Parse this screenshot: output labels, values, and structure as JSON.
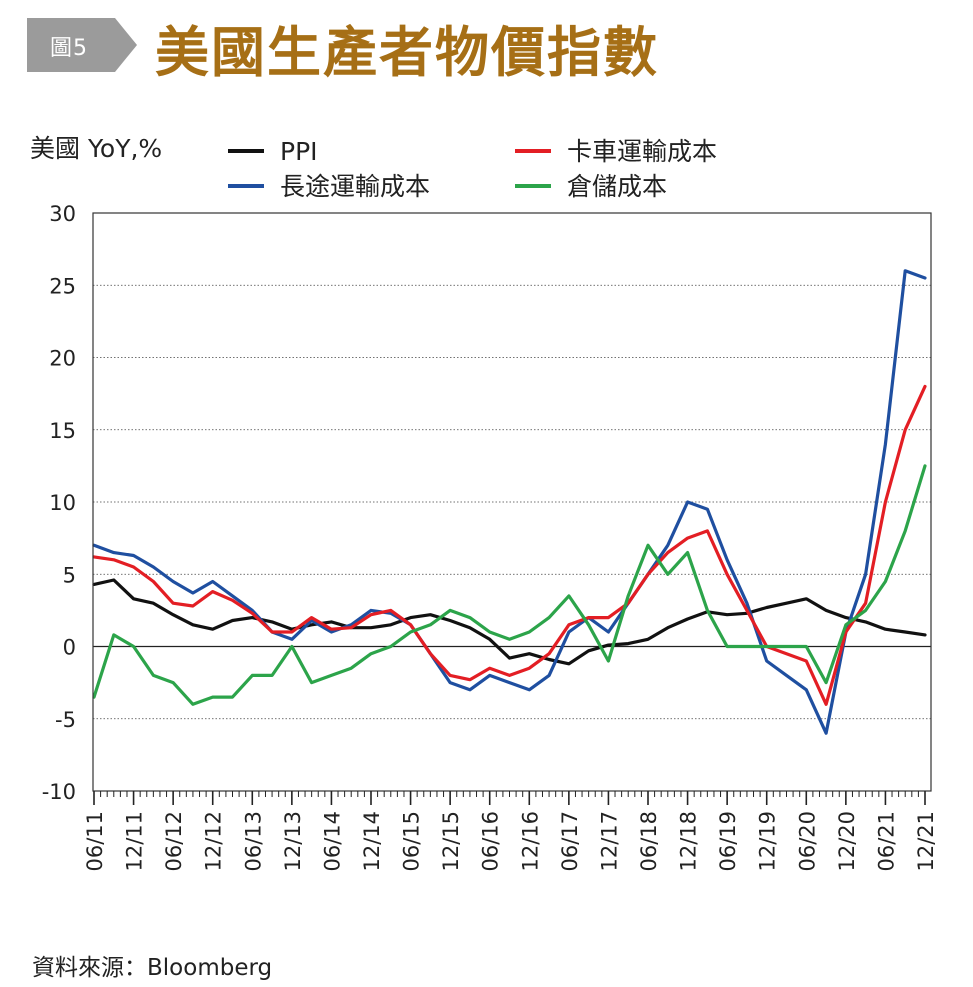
{
  "header": {
    "badge": "圖5",
    "title": "美國生產者物價指數"
  },
  "source": "資料來源：Bloomberg",
  "chart_data": {
    "type": "line",
    "ylabel": "美國 YoY,%",
    "ylim": [
      -10,
      30
    ],
    "y_ticks": [
      "30",
      "25",
      "20",
      "15",
      "10",
      "5",
      "0",
      "-5",
      "-10"
    ],
    "x_tick_labels": [
      "06/11",
      "12/11",
      "06/12",
      "12/12",
      "06/13",
      "12/13",
      "06/14",
      "12/14",
      "06/15",
      "12/15",
      "06/16",
      "12/16",
      "06/17",
      "12/17",
      "06/18",
      "12/18",
      "06/19",
      "12/19",
      "06/20",
      "12/20",
      "06/21",
      "12/21"
    ],
    "x_range_months": [
      0,
      126
    ],
    "grid": "horizontal-dotted",
    "legend_position": "top",
    "series": [
      {
        "name": "PPI",
        "color": "#111111",
        "points": [
          [
            0,
            4.3
          ],
          [
            3,
            4.6
          ],
          [
            6,
            3.3
          ],
          [
            9,
            3.0
          ],
          [
            12,
            2.2
          ],
          [
            15,
            1.5
          ],
          [
            18,
            1.2
          ],
          [
            21,
            1.8
          ],
          [
            24,
            2.0
          ],
          [
            27,
            1.7
          ],
          [
            30,
            1.2
          ],
          [
            33,
            1.5
          ],
          [
            36,
            1.7
          ],
          [
            39,
            1.3
          ],
          [
            42,
            1.3
          ],
          [
            45,
            1.5
          ],
          [
            48,
            2.0
          ],
          [
            51,
            2.2
          ],
          [
            54,
            1.8
          ],
          [
            57,
            1.3
          ],
          [
            60,
            0.5
          ],
          [
            63,
            -0.8
          ],
          [
            66,
            -0.5
          ],
          [
            69,
            -0.9
          ],
          [
            72,
            -1.2
          ],
          [
            75,
            -0.3
          ],
          [
            78,
            0.1
          ],
          [
            81,
            0.2
          ],
          [
            84,
            0.5
          ],
          [
            87,
            1.3
          ],
          [
            90,
            1.9
          ],
          [
            93,
            2.4
          ],
          [
            96,
            2.2
          ],
          [
            99,
            2.3
          ],
          [
            102,
            2.7
          ],
          [
            105,
            3.0
          ],
          [
            108,
            3.3
          ],
          [
            111,
            2.5
          ],
          [
            114,
            2.0
          ],
          [
            117,
            1.7
          ],
          [
            120,
            1.2
          ],
          [
            123,
            1.0
          ],
          [
            126,
            0.8
          ]
        ]
      },
      {
        "name": "長途運輸成本",
        "color": "#1f4fa0",
        "points": [
          [
            0,
            7.0
          ],
          [
            3,
            6.5
          ],
          [
            6,
            6.3
          ],
          [
            9,
            5.5
          ],
          [
            12,
            4.5
          ],
          [
            15,
            3.7
          ],
          [
            18,
            4.5
          ],
          [
            21,
            3.5
          ],
          [
            24,
            2.5
          ],
          [
            27,
            1.0
          ],
          [
            30,
            0.5
          ],
          [
            33,
            1.8
          ],
          [
            36,
            1.0
          ],
          [
            39,
            1.5
          ],
          [
            42,
            2.5
          ],
          [
            45,
            2.3
          ],
          [
            48,
            1.5
          ],
          [
            51,
            -0.5
          ],
          [
            54,
            -2.5
          ],
          [
            57,
            -3.0
          ],
          [
            60,
            -2.0
          ],
          [
            63,
            -2.5
          ],
          [
            66,
            -3.0
          ],
          [
            69,
            -2.0
          ],
          [
            72,
            1.0
          ],
          [
            75,
            2.0
          ],
          [
            78,
            1.0
          ],
          [
            81,
            3.0
          ],
          [
            84,
            5.0
          ],
          [
            87,
            7.0
          ],
          [
            90,
            10.0
          ],
          [
            93,
            9.5
          ],
          [
            96,
            6.0
          ],
          [
            99,
            3.0
          ],
          [
            102,
            -1.0
          ],
          [
            105,
            -2.0
          ],
          [
            108,
            -3.0
          ],
          [
            111,
            -6.0
          ],
          [
            114,
            1.0
          ],
          [
            117,
            5.0
          ],
          [
            120,
            14.0
          ],
          [
            123,
            26.0
          ],
          [
            126,
            25.5
          ]
        ]
      },
      {
        "name": "卡車運輸成本",
        "color": "#e31e24",
        "points": [
          [
            0,
            6.2
          ],
          [
            3,
            6.0
          ],
          [
            6,
            5.5
          ],
          [
            9,
            4.5
          ],
          [
            12,
            3.0
          ],
          [
            15,
            2.8
          ],
          [
            18,
            3.8
          ],
          [
            21,
            3.2
          ],
          [
            24,
            2.3
          ],
          [
            27,
            1.0
          ],
          [
            30,
            1.0
          ],
          [
            33,
            2.0
          ],
          [
            36,
            1.2
          ],
          [
            39,
            1.3
          ],
          [
            42,
            2.2
          ],
          [
            45,
            2.5
          ],
          [
            48,
            1.5
          ],
          [
            51,
            -0.5
          ],
          [
            54,
            -2.0
          ],
          [
            57,
            -2.3
          ],
          [
            60,
            -1.5
          ],
          [
            63,
            -2.0
          ],
          [
            66,
            -1.5
          ],
          [
            69,
            -0.5
          ],
          [
            72,
            1.5
          ],
          [
            75,
            2.0
          ],
          [
            78,
            2.0
          ],
          [
            81,
            3.0
          ],
          [
            84,
            5.0
          ],
          [
            87,
            6.5
          ],
          [
            90,
            7.5
          ],
          [
            93,
            8.0
          ],
          [
            96,
            5.0
          ],
          [
            99,
            2.5
          ],
          [
            102,
            0.0
          ],
          [
            105,
            -0.5
          ],
          [
            108,
            -1.0
          ],
          [
            111,
            -4.0
          ],
          [
            114,
            1.0
          ],
          [
            117,
            3.0
          ],
          [
            120,
            10.0
          ],
          [
            123,
            15.0
          ],
          [
            126,
            18.0
          ]
        ]
      },
      {
        "name": "倉儲成本",
        "color": "#2ca44a",
        "points": [
          [
            0,
            -3.5
          ],
          [
            3,
            0.8
          ],
          [
            6,
            0.0
          ],
          [
            9,
            -2.0
          ],
          [
            12,
            -2.5
          ],
          [
            15,
            -4.0
          ],
          [
            18,
            -3.5
          ],
          [
            21,
            -3.5
          ],
          [
            24,
            -2.0
          ],
          [
            27,
            -2.0
          ],
          [
            30,
            0.0
          ],
          [
            33,
            -2.5
          ],
          [
            36,
            -2.0
          ],
          [
            39,
            -1.5
          ],
          [
            42,
            -0.5
          ],
          [
            45,
            0.0
          ],
          [
            48,
            1.0
          ],
          [
            51,
            1.5
          ],
          [
            54,
            2.5
          ],
          [
            57,
            2.0
          ],
          [
            60,
            1.0
          ],
          [
            63,
            0.5
          ],
          [
            66,
            1.0
          ],
          [
            69,
            2.0
          ],
          [
            72,
            3.5
          ],
          [
            75,
            1.5
          ],
          [
            78,
            -1.0
          ],
          [
            81,
            3.5
          ],
          [
            84,
            7.0
          ],
          [
            87,
            5.0
          ],
          [
            90,
            6.5
          ],
          [
            93,
            2.5
          ],
          [
            96,
            0.0
          ],
          [
            99,
            0.0
          ],
          [
            102,
            0.0
          ],
          [
            105,
            0.0
          ],
          [
            108,
            0.0
          ],
          [
            111,
            -2.5
          ],
          [
            114,
            1.5
          ],
          [
            117,
            2.5
          ],
          [
            120,
            4.5
          ],
          [
            123,
            8.0
          ],
          [
            126,
            12.5
          ]
        ]
      }
    ]
  }
}
